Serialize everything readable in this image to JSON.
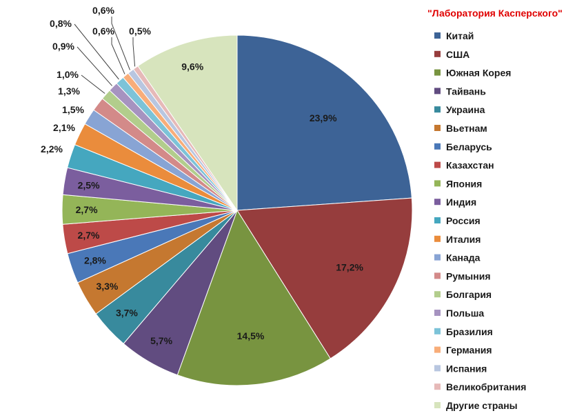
{
  "chart_data": {
    "type": "pie",
    "title": "\"Лаборатория Касперского\"",
    "legend_position": "right",
    "start_angle_deg": 0,
    "direction": "clockwise",
    "unit": "%",
    "slices": [
      {
        "label": "Китай",
        "value": 23.9,
        "display": "23,9%",
        "color": "#3d6396"
      },
      {
        "label": "США",
        "value": 17.2,
        "display": "17,2%",
        "color": "#963d3d"
      },
      {
        "label": "Южная Корея",
        "value": 14.5,
        "display": "14,5%",
        "color": "#789440"
      },
      {
        "label": "Тайвань",
        "value": 5.7,
        "display": "5,7%",
        "color": "#614c80"
      },
      {
        "label": "Украина",
        "value": 3.7,
        "display": "3,7%",
        "color": "#388a9d"
      },
      {
        "label": "Вьетнам",
        "value": 3.3,
        "display": "3,3%",
        "color": "#c57830"
      },
      {
        "label": "Беларусь",
        "value": 2.8,
        "display": "2,8%",
        "color": "#4a78b8"
      },
      {
        "label": "Казахстан",
        "value": 2.7,
        "display": "2,7%",
        "color": "#bd4a48"
      },
      {
        "label": "Япония",
        "value": 2.7,
        "display": "2,7%",
        "color": "#94b558"
      },
      {
        "label": "Индия",
        "value": 2.5,
        "display": "2,5%",
        "color": "#7b5e9e"
      },
      {
        "label": "Россия",
        "value": 2.2,
        "display": "2,2%",
        "color": "#45a7bf"
      },
      {
        "label": "Италия",
        "value": 2.1,
        "display": "2,1%",
        "color": "#ea8c3c"
      },
      {
        "label": "Канада",
        "value": 1.5,
        "display": "1,5%",
        "color": "#88a4d4"
      },
      {
        "label": "Румыния",
        "value": 1.3,
        "display": "1,3%",
        "color": "#d38a89"
      },
      {
        "label": "Болгария",
        "value": 1.0,
        "display": "1,0%",
        "color": "#b2cd8c"
      },
      {
        "label": "Польша",
        "value": 0.9,
        "display": "0,9%",
        "color": "#a693c0"
      },
      {
        "label": "Бразилия",
        "value": 0.8,
        "display": "0,8%",
        "color": "#7cc3d8"
      },
      {
        "label": "Германия",
        "value": 0.6,
        "display": "0,6%",
        "color": "#f8ad79"
      },
      {
        "label": "Испания",
        "value": 0.6,
        "display": "0,6%",
        "color": "#b8c6e0"
      },
      {
        "label": "Великобритания",
        "value": 0.5,
        "display": "0,5%",
        "color": "#e6b9b8"
      },
      {
        "label": "Другие страны",
        "value": 9.6,
        "display": "9,6%",
        "color": "#d7e4bd"
      }
    ]
  }
}
